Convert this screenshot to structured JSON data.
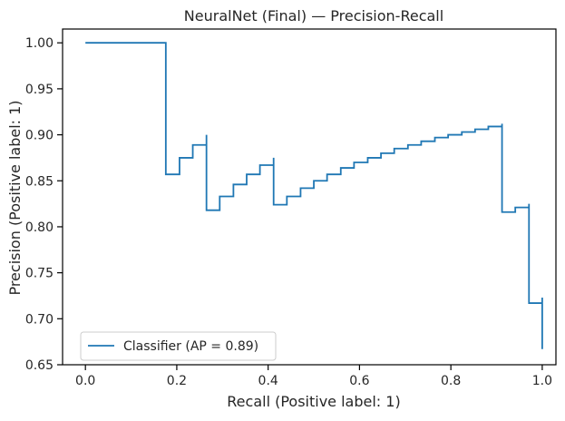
{
  "chart_data": {
    "type": "line",
    "title": "NeuralNet (Final) — Precision-Recall",
    "xlabel": "Recall (Positive label: 1)",
    "ylabel": "Precision (Positive label: 1)",
    "xlim": [
      -0.05,
      1.03
    ],
    "ylim": [
      0.65,
      1.015
    ],
    "xticks": [
      0.0,
      0.2,
      0.4,
      0.6,
      0.8,
      1.0
    ],
    "xtick_labels": [
      "0.0",
      "0.2",
      "0.4",
      "0.6",
      "0.8",
      "1.0"
    ],
    "yticks": [
      0.65,
      0.7,
      0.75,
      0.8,
      0.85,
      0.9,
      0.95,
      1.0
    ],
    "ytick_labels": [
      "0.65",
      "0.70",
      "0.75",
      "0.80",
      "0.85",
      "0.90",
      "0.95",
      "1.00"
    ],
    "grid": false,
    "legend_position": "lower-left",
    "series": [
      {
        "name": "Classifier (AP = 0.89)",
        "color": "#1f77b4",
        "step": "post",
        "recall": [
          0.0,
          0.176,
          0.176,
          0.206,
          0.235,
          0.265,
          0.265,
          0.294,
          0.324,
          0.353,
          0.382,
          0.412,
          0.412,
          0.441,
          0.471,
          0.5,
          0.529,
          0.559,
          0.588,
          0.618,
          0.647,
          0.676,
          0.706,
          0.735,
          0.765,
          0.794,
          0.824,
          0.853,
          0.882,
          0.912,
          0.912,
          0.941,
          0.971,
          0.971,
          1.0,
          1.0
        ],
        "precision": [
          1.0,
          1.0,
          0.857,
          0.875,
          0.889,
          0.9,
          0.818,
          0.833,
          0.846,
          0.857,
          0.867,
          0.875,
          0.824,
          0.833,
          0.842,
          0.85,
          0.857,
          0.864,
          0.87,
          0.875,
          0.88,
          0.885,
          0.889,
          0.893,
          0.897,
          0.9,
          0.903,
          0.906,
          0.909,
          0.912,
          0.816,
          0.821,
          0.825,
          0.717,
          0.723,
          0.667
        ]
      }
    ]
  }
}
